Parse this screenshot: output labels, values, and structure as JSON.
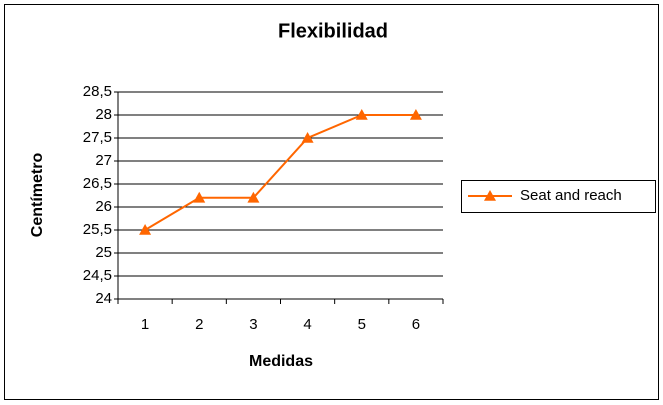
{
  "chart_data": {
    "type": "line",
    "title": "Flexibilidad",
    "x_label": "Medidas",
    "y_label": "Centímetro",
    "categories": [
      "1",
      "2",
      "3",
      "4",
      "5",
      "6"
    ],
    "series": [
      {
        "name": "Seat and reach",
        "color": "#ff6600",
        "values": [
          25.5,
          26.2,
          26.2,
          27.5,
          28,
          28
        ]
      }
    ],
    "ylim": [
      24,
      28.5
    ],
    "yticks": [
      24,
      {
        "value": 24.5,
        "label": "24,5"
      },
      25,
      {
        "value": 25.5,
        "label": "25,5"
      },
      26,
      {
        "value": 26.5,
        "label": "26,5"
      },
      27,
      {
        "value": 27.5,
        "label": "27,5"
      },
      28,
      {
        "value": 28.5,
        "label": "28,5"
      }
    ],
    "grid": true,
    "legend": "right"
  }
}
